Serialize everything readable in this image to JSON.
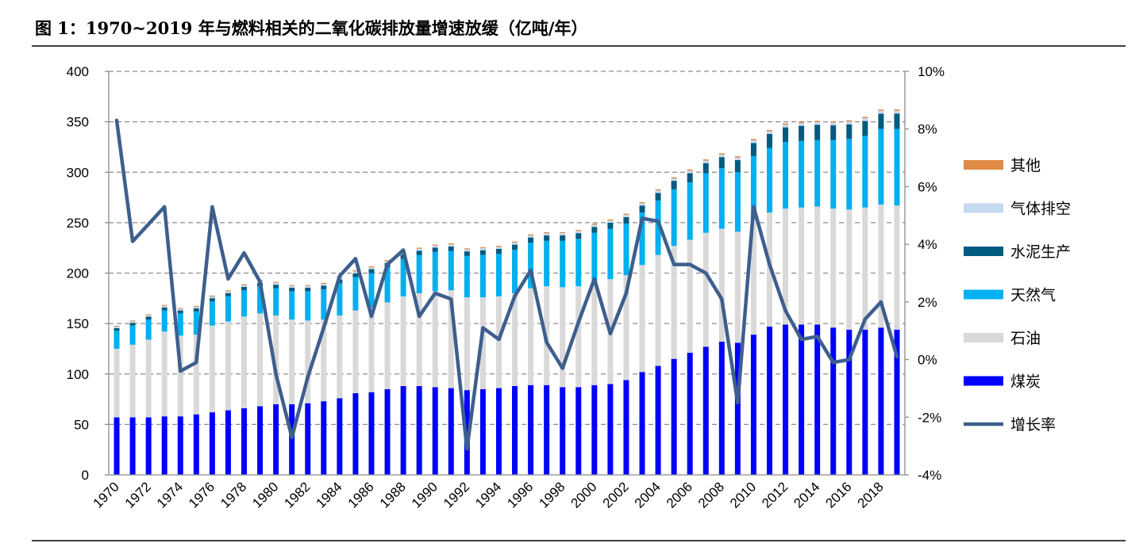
{
  "title": "图 1：1970~2019 年与燃料相关的二氧化碳排放量增速放缓（亿吨/年）",
  "chart_data": {
    "type": "bar",
    "stacked": true,
    "categories": [
      1970,
      1971,
      1972,
      1973,
      1974,
      1975,
      1976,
      1977,
      1978,
      1979,
      1980,
      1981,
      1982,
      1983,
      1984,
      1985,
      1986,
      1987,
      1988,
      1989,
      1990,
      1991,
      1992,
      1993,
      1994,
      1995,
      1996,
      1997,
      1998,
      1999,
      2000,
      2001,
      2002,
      2003,
      2004,
      2005,
      2006,
      2007,
      2008,
      2009,
      2010,
      2011,
      2012,
      2013,
      2014,
      2015,
      2016,
      2017,
      2018,
      2019
    ],
    "x_tick_labels": [
      "1970",
      "1972",
      "1974",
      "1976",
      "1978",
      "1980",
      "1982",
      "1984",
      "1986",
      "1988",
      "1990",
      "1992",
      "1994",
      "1996",
      "1998",
      "2000",
      "2002",
      "2004",
      "2006",
      "2008",
      "2010",
      "2012",
      "2014",
      "2016",
      "2018"
    ],
    "ylim": [
      0,
      400
    ],
    "y_ticks": [
      0,
      50,
      100,
      150,
      200,
      250,
      300,
      350,
      400
    ],
    "y2lim": [
      -4,
      10
    ],
    "y2_ticks": [
      "-4%",
      "-2%",
      "0%",
      "2%",
      "4%",
      "6%",
      "8%",
      "10%"
    ],
    "grid": true,
    "legend_position": "right",
    "series": [
      {
        "name": "煤炭",
        "color": "#0000ff",
        "values": [
          57,
          57,
          57,
          58,
          58,
          60,
          62,
          64,
          66,
          68,
          70,
          70,
          71,
          73,
          76,
          81,
          82,
          85,
          88,
          88,
          87,
          86,
          84,
          85,
          86,
          88,
          89,
          89,
          87,
          87,
          89,
          90,
          94,
          102,
          108,
          115,
          121,
          127,
          132,
          131,
          139,
          147,
          149,
          149,
          149,
          146,
          144,
          144,
          146,
          144
        ]
      },
      {
        "name": "石油",
        "color": "#d9d9d9",
        "values": [
          68,
          72,
          77,
          84,
          80,
          79,
          86,
          88,
          91,
          92,
          88,
          84,
          82,
          81,
          82,
          82,
          84,
          86,
          89,
          92,
          95,
          97,
          92,
          91,
          91,
          92,
          96,
          98,
          99,
          100,
          102,
          104,
          104,
          106,
          110,
          112,
          112,
          113,
          112,
          110,
          114,
          113,
          115,
          116,
          117,
          118,
          119,
          121,
          122,
          123
        ]
      },
      {
        "name": "天然气",
        "color": "#00b0f0",
        "values": [
          18,
          19,
          20,
          21,
          22,
          23,
          24,
          25,
          26,
          27,
          27,
          28,
          29,
          30,
          32,
          33,
          34,
          35,
          37,
          38,
          39,
          39,
          41,
          42,
          42,
          43,
          45,
          45,
          46,
          47,
          49,
          50,
          51,
          52,
          54,
          56,
          57,
          59,
          60,
          59,
          63,
          64,
          66,
          66,
          66,
          68,
          70,
          71,
          75,
          76
        ]
      },
      {
        "name": "水泥生产",
        "color": "#005b7f",
        "values": [
          2.5,
          2.7,
          2.8,
          3,
          3,
          3,
          3.1,
          3.2,
          3.3,
          3.4,
          3.5,
          3.5,
          3.5,
          3.6,
          3.7,
          3.8,
          3.9,
          4,
          4.1,
          4.2,
          4.3,
          4.4,
          4.5,
          4.7,
          5,
          5.2,
          5.3,
          5.4,
          5.5,
          5.6,
          5.8,
          6,
          6.5,
          7,
          7.5,
          8.5,
          9,
          10,
          11,
          12,
          13,
          14,
          14.5,
          15,
          15,
          14.5,
          14.5,
          14.8,
          15,
          15.2
        ]
      },
      {
        "name": "气体排空",
        "color": "#c5d9f1",
        "values": [
          1.5,
          1.5,
          1.6,
          1.6,
          1.6,
          1.7,
          1.7,
          1.8,
          1.8,
          1.8,
          1.8,
          1.8,
          1.8,
          1.8,
          1.9,
          1.9,
          1.9,
          1.9,
          2,
          2,
          2,
          2,
          2,
          2,
          2,
          2.1,
          2.1,
          2.1,
          2.1,
          2.2,
          2.2,
          2.2,
          2.3,
          2.3,
          2.4,
          2.4,
          2.5,
          2.5,
          2.6,
          2.6,
          2.7,
          2.7,
          2.7,
          2.8,
          2.8,
          2.8,
          2.8,
          2.9,
          2.9,
          2.9
        ]
      },
      {
        "name": "其他",
        "color": "#e08a45",
        "values": [
          0.8,
          0.8,
          0.8,
          0.8,
          0.8,
          0.8,
          0.9,
          0.9,
          0.9,
          0.9,
          0.9,
          0.9,
          0.9,
          0.9,
          1,
          1,
          1,
          1,
          1,
          1,
          1,
          1,
          1,
          1,
          1,
          1,
          1,
          1,
          1,
          1,
          1.1,
          1.1,
          1.1,
          1.1,
          1.1,
          1.1,
          1.2,
          1.2,
          1.2,
          1.2,
          1.2,
          1.2,
          1.2,
          1.2,
          1.2,
          1.2,
          1.2,
          1.2,
          1.2,
          1.2
        ]
      }
    ],
    "line_series": {
      "name": "增长率",
      "axis": "right",
      "color": "#3d5f8e",
      "values": [
        8.3,
        4.1,
        4.7,
        5.3,
        -0.4,
        -0.1,
        5.3,
        2.8,
        3.7,
        2.7,
        -0.5,
        -2.7,
        -0.6,
        1.1,
        2.9,
        3.5,
        1.5,
        3.3,
        3.8,
        1.5,
        2.3,
        2.1,
        -3.1,
        1.1,
        0.7,
        2.2,
        3.1,
        0.6,
        -0.3,
        1.3,
        2.8,
        0.9,
        2.3,
        4.9,
        4.8,
        3.3,
        3.3,
        3.0,
        2.1,
        -1.5,
        5.3,
        3.3,
        1.7,
        0.7,
        0.8,
        -0.1,
        0.0,
        1.4,
        2.0,
        0.1
      ]
    }
  }
}
